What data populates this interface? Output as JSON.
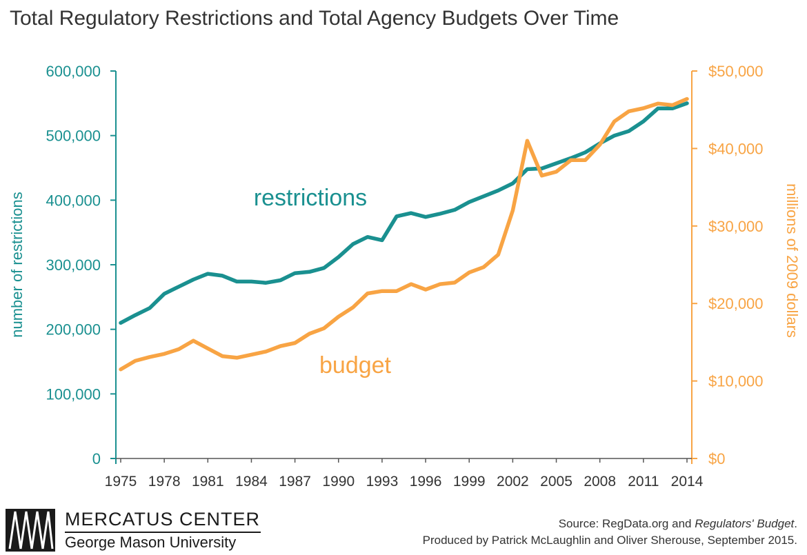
{
  "title": "Total Regulatory Restrictions and Total Agency Budgets Over Time",
  "colors": {
    "restrictions": "#1a9090",
    "budget": "#f8a444",
    "text": "#333333"
  },
  "chart_data": {
    "type": "line",
    "title": "Total Regulatory Restrictions and Total Agency Budgets Over Time",
    "x": [
      1975,
      1976,
      1977,
      1978,
      1979,
      1980,
      1981,
      1982,
      1983,
      1984,
      1985,
      1986,
      1987,
      1988,
      1989,
      1990,
      1991,
      1992,
      1993,
      1994,
      1995,
      1996,
      1997,
      1998,
      1999,
      2000,
      2001,
      2002,
      2003,
      2004,
      2005,
      2006,
      2007,
      2008,
      2009,
      2010,
      2011,
      2012,
      2013,
      2014
    ],
    "x_tick_labels": [
      "1975",
      "1978",
      "1981",
      "1984",
      "1987",
      "1990",
      "1993",
      "1996",
      "1999",
      "2002",
      "2005",
      "2008",
      "2011",
      "2014"
    ],
    "ylabel": "number of restrictions",
    "y2label": "millions of 2009 dollars",
    "ylim": [
      0,
      600000
    ],
    "y2lim": [
      0,
      50000
    ],
    "y_tick_labels": [
      "0",
      "100,000",
      "200,000",
      "300,000",
      "400,000",
      "500,000",
      "600,000"
    ],
    "y2_tick_labels": [
      "$0",
      "$10,000",
      "$20,000",
      "$30,000",
      "$40,000",
      "$50,000"
    ],
    "grid": false,
    "series": [
      {
        "name": "restrictions",
        "axis": "left",
        "values": [
          210000,
          222000,
          233000,
          255000,
          266000,
          277000,
          286000,
          283000,
          274000,
          274000,
          272000,
          276000,
          287000,
          289000,
          295000,
          312000,
          332000,
          343000,
          338000,
          375000,
          380000,
          374000,
          379000,
          385000,
          397000,
          406000,
          415000,
          426000,
          448000,
          449000,
          457000,
          465000,
          474000,
          488000,
          500000,
          507000,
          522000,
          542000,
          542000,
          550000
        ]
      },
      {
        "name": "budget",
        "axis": "right",
        "values": [
          11500,
          12600,
          13100,
          13500,
          14100,
          15200,
          14200,
          13200,
          13000,
          13400,
          13800,
          14500,
          14900,
          16100,
          16800,
          18300,
          19500,
          21300,
          21600,
          21600,
          22500,
          21800,
          22500,
          22700,
          24000,
          24700,
          26300,
          32000,
          41000,
          36500,
          37000,
          38500,
          38500,
          40500,
          43500,
          44800,
          45200,
          45800,
          45600,
          46400
        ]
      }
    ]
  },
  "footer": {
    "logo_name": "MERCATUS CENTER",
    "logo_sub": "George Mason University",
    "source_prefix": "Source: RegData.org and ",
    "source_italic": "Regulators' Budget",
    "source_suffix": ".",
    "produced_by": "Produced by Patrick McLaughlin and Oliver Sherouse, September 2015."
  }
}
